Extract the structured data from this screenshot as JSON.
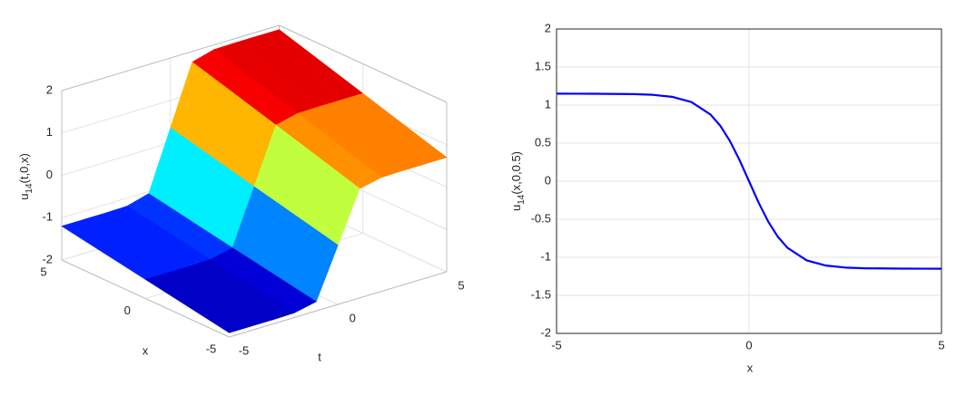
{
  "chart_data": [
    {
      "type": "surface",
      "zlabel": [
        "u",
        "14",
        "(t,0,x)"
      ],
      "xlabel": "x",
      "tlabel": "t",
      "x": [
        -5,
        0,
        5
      ],
      "t": [
        -5,
        -4,
        -3,
        -2,
        -1,
        0,
        1,
        2,
        3,
        4,
        5
      ],
      "z": [
        [
          -1.9,
          -1.55,
          -1.2
        ],
        [
          -1.9,
          -1.55,
          -1.2
        ],
        [
          -1.9,
          -1.55,
          -1.2
        ],
        [
          -1.89,
          -1.54,
          -1.19
        ],
        [
          -1.78,
          -1.42,
          -1.05
        ],
        [
          -0.6,
          -0.13,
          0.35
        ],
        [
          0.58,
          1.17,
          1.75
        ],
        [
          0.69,
          1.29,
          1.89
        ],
        [
          0.7,
          1.3,
          1.9
        ],
        [
          0.7,
          1.3,
          1.9
        ],
        [
          0.7,
          1.3,
          1.9
        ]
      ],
      "xlim": [
        -5,
        5
      ],
      "tlim": [
        -5,
        5
      ],
      "zlim": [
        -2,
        2
      ],
      "xticks": [
        -5,
        0,
        5
      ],
      "tticks": [
        -5,
        0,
        5
      ],
      "zticks": [
        -2,
        -1,
        0,
        1,
        2
      ],
      "grid": true
    },
    {
      "type": "line",
      "xlabel": "x",
      "ylabel": [
        "u",
        "14",
        "(x,0,0.5)"
      ],
      "x": [
        -5,
        -4,
        -3,
        -2.5,
        -2,
        -1.5,
        -1,
        -0.75,
        -0.5,
        -0.25,
        0,
        0.25,
        0.5,
        0.75,
        1,
        1.5,
        2,
        2.5,
        3,
        4,
        5
      ],
      "series": [
        {
          "color": "#0000ff",
          "values": [
            1.15,
            1.149,
            1.144,
            1.135,
            1.109,
            1.041,
            0.876,
            0.731,
            0.532,
            0.282,
            0,
            -0.282,
            -0.532,
            -0.731,
            -0.876,
            -1.041,
            -1.109,
            -1.135,
            -1.144,
            -1.149,
            -1.15
          ]
        }
      ],
      "xlim": [
        -5,
        5
      ],
      "ylim": [
        -2,
        2
      ],
      "xticks": [
        -5,
        0,
        5
      ],
      "yticks": [
        -2,
        -1.5,
        -1,
        -0.5,
        0,
        0.5,
        1,
        1.5,
        2
      ],
      "grid": true
    }
  ]
}
